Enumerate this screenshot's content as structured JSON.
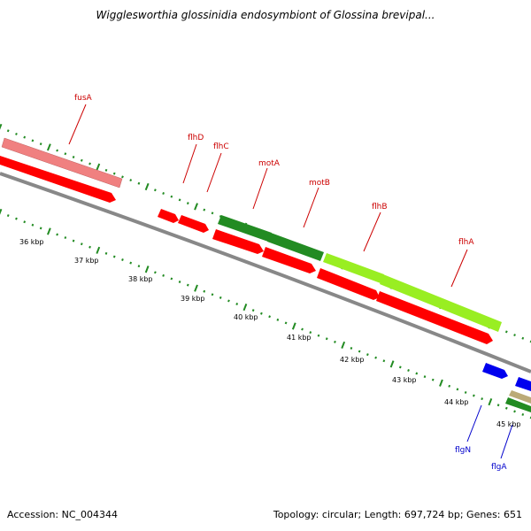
{
  "title": "Wigglesworthia glossinidia endosymbiont of Glossina brevipal...",
  "footer": {
    "accession": "Accession: NC_004344",
    "topology": "Topology: circular; Length: 697,724 bp; Genes: 651"
  },
  "scale_labels": [
    "36 kbp",
    "37 kbp",
    "38 kbp",
    "39 kbp",
    "40 kbp",
    "41 kbp",
    "42 kbp",
    "43 kbp",
    "44 kbp",
    "45 kbp"
  ],
  "gene_labels": [
    {
      "name": "fusA",
      "color": "#cc0000"
    },
    {
      "name": "flhD",
      "color": "#cc0000"
    },
    {
      "name": "flhC",
      "color": "#cc0000"
    },
    {
      "name": "motA",
      "color": "#cc0000"
    },
    {
      "name": "motB",
      "color": "#cc0000"
    },
    {
      "name": "flhB",
      "color": "#cc0000"
    },
    {
      "name": "flhA",
      "color": "#cc0000"
    },
    {
      "name": "flgN",
      "color": "#0000cc"
    },
    {
      "name": "flgA",
      "color": "#0000cc"
    }
  ],
  "colors": {
    "backbone": "#888888",
    "cds": "#ff0000",
    "rna": "#f08080",
    "cog_green": "#228b22",
    "cog_lightgreen": "#99ee22",
    "blue_gene": "#0000ee",
    "tan_gene": "#bbaa77",
    "ticks": "#228b22"
  }
}
